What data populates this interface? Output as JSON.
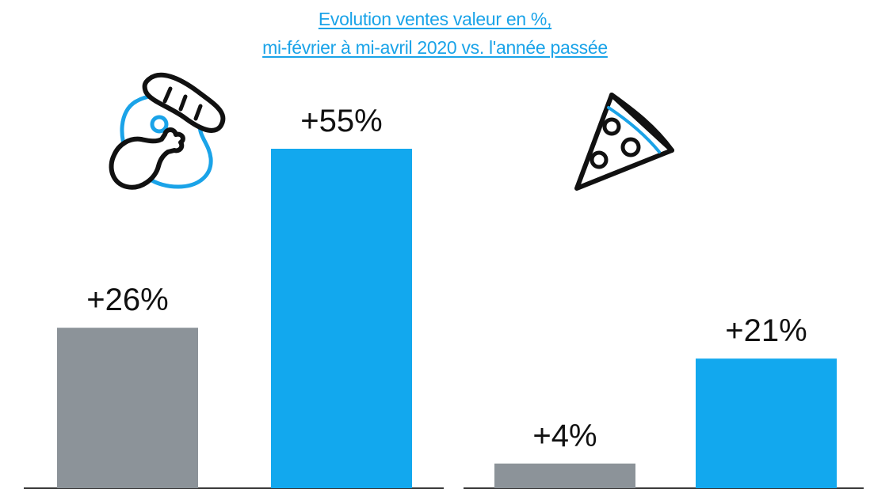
{
  "chart_data": [
    {
      "type": "bar",
      "title": "Evolution ventes valeur en %, mi-février à mi-avril 2020 vs. l'année passée",
      "icon": "meat-icon",
      "values": [
        26,
        55
      ],
      "labels": [
        "+26%",
        "+55%"
      ],
      "colors": [
        "#8c9399",
        "#12a8ee"
      ],
      "ylim": [
        0,
        60
      ]
    },
    {
      "type": "bar",
      "icon": "pizza-icon",
      "values": [
        4,
        21
      ],
      "labels": [
        "+4%",
        "+21%"
      ],
      "colors": [
        "#8c9399",
        "#12a8ee"
      ],
      "ylim": [
        0,
        60
      ]
    }
  ],
  "title": {
    "line1": "Evolution ventes valeur en %,",
    "line2": "mi-février à mi-avril 2020 vs. l'année passée"
  },
  "colors": {
    "title": "#1aa3e8",
    "gray_bar": "#8c9399",
    "blue_bar": "#12a8ee",
    "axis": "#333333"
  }
}
